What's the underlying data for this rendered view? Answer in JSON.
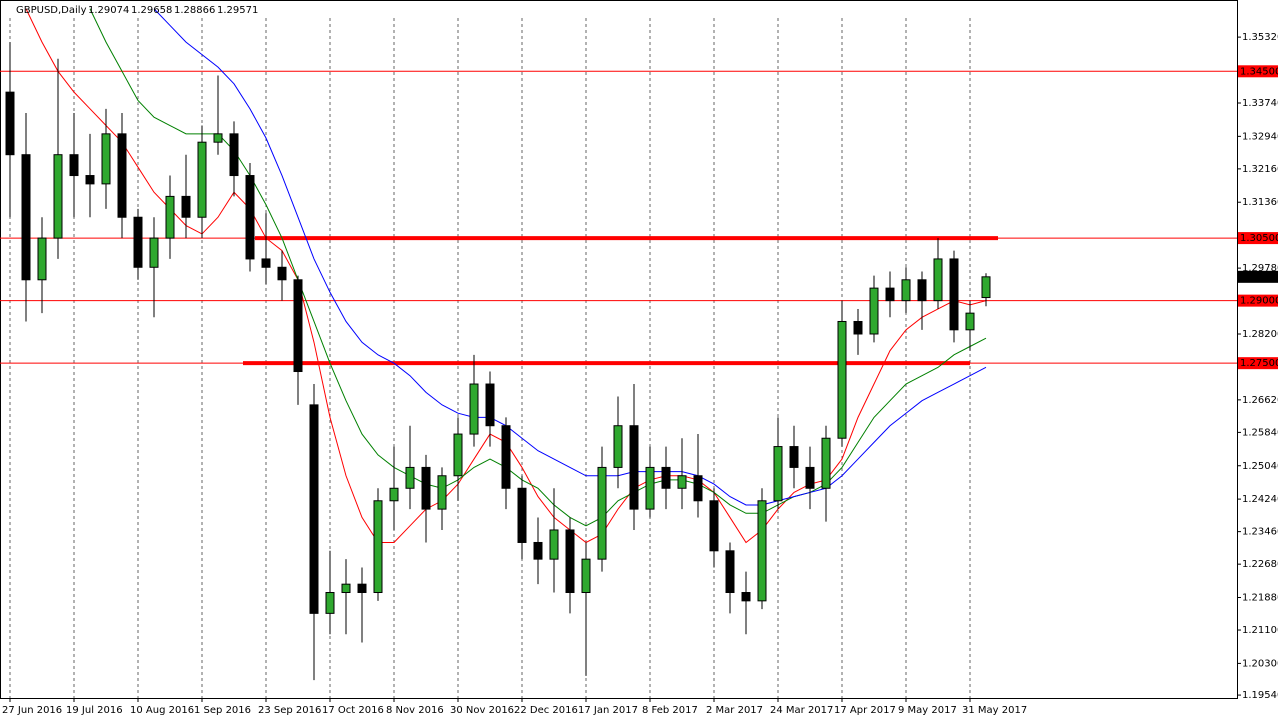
{
  "chart_data": {
    "type": "candlestick",
    "title": "GBPUSD,Daily",
    "categories": [
      "27 Jun 2016",
      null,
      null,
      null,
      "19 Jul 2016",
      null,
      null,
      null,
      "10 Aug 2016",
      null,
      null,
      null,
      "1 Sep 2016",
      null,
      null,
      null,
      "23 Sep 2016",
      null,
      null,
      null,
      "17 Oct 2016",
      null,
      null,
      null,
      "8 Nov 2016",
      null,
      null,
      null,
      "30 Nov 2016",
      null,
      null,
      null,
      "22 Dec 2016",
      null,
      null,
      null,
      "17 Jan 2017",
      null,
      null,
      null,
      "8 Feb 2017",
      null,
      null,
      null,
      "2 Mar 2017",
      null,
      null,
      null,
      "24 Mar 2017",
      null,
      null,
      null,
      "17 Apr 2017",
      null,
      null,
      null,
      "9 May 2017",
      null,
      null,
      null,
      "31 May 2017",
      null
    ],
    "open": [
      1.34,
      1.325,
      1.295,
      1.305,
      1.325,
      1.32,
      1.318,
      1.33,
      1.31,
      1.298,
      1.305,
      1.315,
      1.31,
      1.328,
      1.33,
      1.32,
      1.3,
      1.298,
      1.295,
      1.265,
      1.215,
      1.22,
      1.222,
      1.22,
      1.242,
      1.245,
      1.25,
      1.24,
      1.248,
      1.258,
      1.27,
      1.26,
      1.245,
      1.232,
      1.228,
      1.235,
      1.22,
      1.228,
      1.25,
      1.26,
      1.24,
      1.25,
      1.245,
      1.248,
      1.242,
      1.23,
      1.22,
      1.218,
      1.242,
      1.255,
      1.25,
      1.245,
      1.257,
      1.285,
      1.282,
      1.293,
      1.29,
      1.295,
      1.29,
      1.3,
      1.283,
      1.29074
    ],
    "high": [
      1.352,
      1.335,
      1.31,
      1.348,
      1.335,
      1.33,
      1.336,
      1.335,
      1.312,
      1.31,
      1.32,
      1.325,
      1.332,
      1.344,
      1.333,
      1.323,
      1.311,
      1.302,
      1.296,
      1.27,
      1.23,
      1.228,
      1.226,
      1.245,
      1.255,
      1.26,
      1.253,
      1.25,
      1.262,
      1.277,
      1.273,
      1.262,
      1.248,
      1.238,
      1.245,
      1.238,
      1.232,
      1.255,
      1.267,
      1.27,
      1.255,
      1.255,
      1.257,
      1.258,
      1.245,
      1.232,
      1.225,
      1.245,
      1.262,
      1.26,
      1.255,
      1.26,
      1.29,
      1.288,
      1.296,
      1.297,
      1.298,
      1.297,
      1.305,
      1.302,
      1.29,
      1.29658
    ],
    "low": [
      1.31,
      1.285,
      1.287,
      1.3,
      1.31,
      1.31,
      1.312,
      1.305,
      1.295,
      1.286,
      1.3,
      1.305,
      1.305,
      1.325,
      1.315,
      1.297,
      1.294,
      1.29,
      1.265,
      1.199,
      1.21,
      1.21,
      1.208,
      1.218,
      1.235,
      1.24,
      1.232,
      1.235,
      1.242,
      1.255,
      1.255,
      1.24,
      1.228,
      1.222,
      1.22,
      1.215,
      1.2,
      1.225,
      1.245,
      1.235,
      1.238,
      1.24,
      1.24,
      1.238,
      1.226,
      1.215,
      1.21,
      1.216,
      1.24,
      1.245,
      1.24,
      1.237,
      1.255,
      1.277,
      1.28,
      1.286,
      1.287,
      1.283,
      1.288,
      1.28,
      1.278,
      1.28866
    ],
    "close": [
      1.325,
      1.295,
      1.305,
      1.325,
      1.32,
      1.318,
      1.33,
      1.31,
      1.298,
      1.305,
      1.315,
      1.31,
      1.328,
      1.33,
      1.32,
      1.3,
      1.298,
      1.295,
      1.273,
      1.215,
      1.22,
      1.222,
      1.22,
      1.242,
      1.245,
      1.25,
      1.24,
      1.248,
      1.258,
      1.27,
      1.26,
      1.245,
      1.232,
      1.228,
      1.235,
      1.22,
      1.228,
      1.25,
      1.26,
      1.24,
      1.25,
      1.245,
      1.248,
      1.242,
      1.23,
      1.22,
      1.218,
      1.242,
      1.255,
      1.25,
      1.245,
      1.257,
      1.285,
      1.282,
      1.293,
      1.29,
      1.295,
      1.29,
      1.3,
      1.283,
      1.287,
      1.29571
    ],
    "up_color": "#2fa82f",
    "down_color": "#000000",
    "series": [
      {
        "color": "#ff0000",
        "values": [
          null,
          1.36,
          1.352,
          1.345,
          1.34,
          1.336,
          1.332,
          1.328,
          1.322,
          1.316,
          1.312,
          1.308,
          1.306,
          1.31,
          1.316,
          1.312,
          1.305,
          1.302,
          1.295,
          1.28,
          1.262,
          1.248,
          1.238,
          1.232,
          1.232,
          1.236,
          1.24,
          1.242,
          1.246,
          1.252,
          1.258,
          1.256,
          1.25,
          1.243,
          1.238,
          1.235,
          1.232,
          1.234,
          1.24,
          1.245,
          1.247,
          1.248,
          1.248,
          1.247,
          1.244,
          1.238,
          1.232,
          1.235,
          1.24,
          1.244,
          1.246,
          1.247,
          1.252,
          1.262,
          1.27,
          1.278,
          1.283,
          1.286,
          1.288,
          1.29,
          1.289,
          1.29
        ]
      },
      {
        "color": "#008000",
        "values": [
          null,
          null,
          null,
          null,
          null,
          1.36,
          1.352,
          1.345,
          1.338,
          1.334,
          1.332,
          1.33,
          1.33,
          1.33,
          1.326,
          1.32,
          1.313,
          1.305,
          1.295,
          1.285,
          1.275,
          1.266,
          1.258,
          1.253,
          1.25,
          1.248,
          1.246,
          1.245,
          1.247,
          1.25,
          1.252,
          1.25,
          1.247,
          1.245,
          1.241,
          1.238,
          1.236,
          1.238,
          1.242,
          1.244,
          1.246,
          1.247,
          1.247,
          1.246,
          1.244,
          1.241,
          1.239,
          1.239,
          1.241,
          1.243,
          1.244,
          1.246,
          1.25,
          1.256,
          1.262,
          1.266,
          1.27,
          1.272,
          1.274,
          1.277,
          1.279,
          1.281
        ]
      },
      {
        "color": "#0000ff",
        "values": [
          null,
          null,
          null,
          null,
          null,
          null,
          null,
          null,
          null,
          1.36,
          1.356,
          1.352,
          1.349,
          1.346,
          1.342,
          1.336,
          1.329,
          1.32,
          1.31,
          1.3,
          1.292,
          1.285,
          1.28,
          1.277,
          1.275,
          1.272,
          1.268,
          1.265,
          1.263,
          1.262,
          1.262,
          1.26,
          1.257,
          1.254,
          1.252,
          1.25,
          1.248,
          1.248,
          1.248,
          1.249,
          1.249,
          1.249,
          1.249,
          1.248,
          1.246,
          1.243,
          1.241,
          1.241,
          1.242,
          1.243,
          1.244,
          1.245,
          1.248,
          1.252,
          1.256,
          1.26,
          1.263,
          1.266,
          1.268,
          1.27,
          1.272,
          1.274
        ]
      }
    ],
    "levels": [
      {
        "value": 1.345,
        "label": "1.34500",
        "bold": false
      },
      {
        "value": 1.305,
        "label": "1.30500",
        "bold": true
      },
      {
        "value": 1.29,
        "label": "1.29000",
        "bold": false
      },
      {
        "value": 1.275,
        "label": "1.27500",
        "bold": true
      }
    ],
    "level_color": "#ff0000",
    "ylim": [
      1.1947,
      1.3621
    ],
    "yticks": [
      {
        "value": 1.3532,
        "label": "1.35320"
      },
      {
        "value": 1.3374,
        "label": "1.33740"
      },
      {
        "value": 1.3294,
        "label": "1.32940"
      },
      {
        "value": 1.3216,
        "label": "1.32160"
      },
      {
        "value": 1.3136,
        "label": "1.31360"
      },
      {
        "value": 1.2978,
        "label": "1.29780"
      },
      {
        "value": 1.282,
        "label": "1.28200"
      },
      {
        "value": 1.2662,
        "label": "1.26620"
      },
      {
        "value": 1.2584,
        "label": "1.25840"
      },
      {
        "value": 1.2504,
        "label": "1.25040"
      },
      {
        "value": 1.2424,
        "label": "1.24240"
      },
      {
        "value": 1.2346,
        "label": "1.23460"
      },
      {
        "value": 1.2268,
        "label": "1.22680"
      },
      {
        "value": 1.2188,
        "label": "1.21880"
      },
      {
        "value": 1.211,
        "label": "1.21100"
      },
      {
        "value": 1.203,
        "label": "1.20300"
      },
      {
        "value": 1.1954,
        "label": "1.19540"
      }
    ],
    "grid": true
  }
}
